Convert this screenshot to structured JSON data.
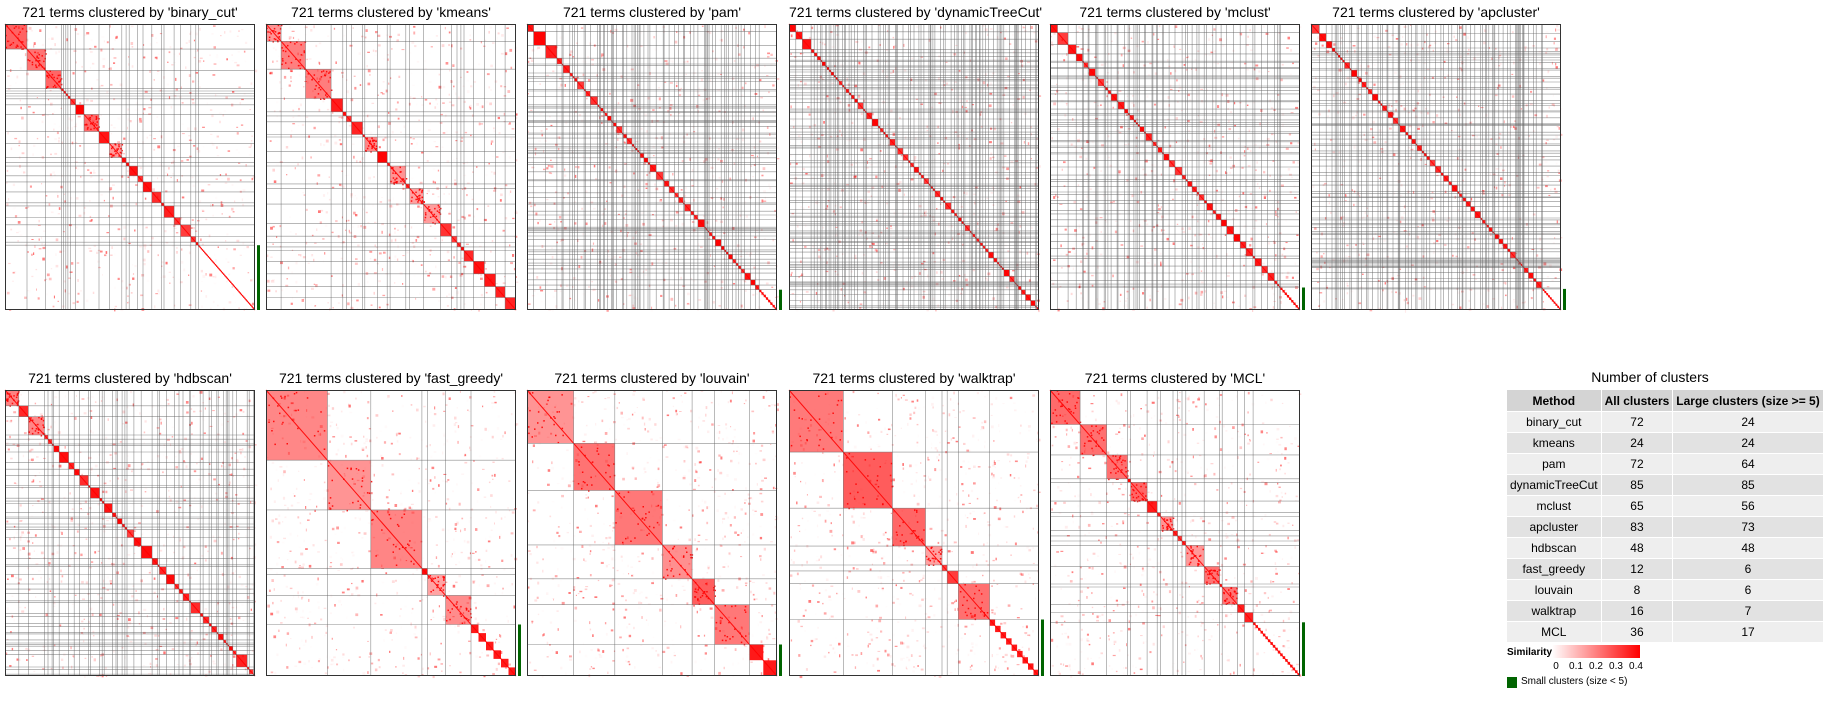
{
  "colors": {
    "low": "#ffffff",
    "high": "#ff0000",
    "small_cluster": "#006400",
    "border": "#555555"
  },
  "panels": [
    {
      "title": "721 terms clustered by 'binary_cut'",
      "method": "binary_cut",
      "n_clusters": 72,
      "n_large": 24
    },
    {
      "title": "721 terms clustered by 'kmeans'",
      "method": "kmeans",
      "n_clusters": 24,
      "n_large": 24
    },
    {
      "title": "721 terms clustered by 'pam'",
      "method": "pam",
      "n_clusters": 72,
      "n_large": 64
    },
    {
      "title": "721 terms clustered by 'dynamicTreeCut'",
      "method": "dynamicTreeCut",
      "n_clusters": 85,
      "n_large": 85
    },
    {
      "title": "721 terms clustered by 'mclust'",
      "method": "mclust",
      "n_clusters": 65,
      "n_large": 56
    },
    {
      "title": "721 terms clustered by 'apcluster'",
      "method": "apcluster",
      "n_clusters": 83,
      "n_large": 73
    },
    {
      "title": "721 terms clustered by 'hdbscan'",
      "method": "hdbscan",
      "n_clusters": 48,
      "n_large": 48
    },
    {
      "title": "721 terms clustered by 'fast_greedy'",
      "method": "fast_greedy",
      "n_clusters": 12,
      "n_large": 6
    },
    {
      "title": "721 terms clustered by 'louvain'",
      "method": "louvain",
      "n_clusters": 8,
      "n_large": 6
    },
    {
      "title": "721 terms clustered by 'walktrap'",
      "method": "walktrap",
      "n_clusters": 16,
      "n_large": 7
    },
    {
      "title": "721 terms clustered by 'MCL'",
      "method": "MCL",
      "n_clusters": 36,
      "n_large": 17
    }
  ],
  "summary_table": {
    "title": "Number of clusters",
    "headers": [
      "Method",
      "All clusters",
      "Large clusters (size >= 5)"
    ],
    "rows": [
      [
        "binary_cut",
        "72",
        "24"
      ],
      [
        "kmeans",
        "24",
        "24"
      ],
      [
        "pam",
        "72",
        "64"
      ],
      [
        "dynamicTreeCut",
        "85",
        "85"
      ],
      [
        "mclust",
        "65",
        "56"
      ],
      [
        "apcluster",
        "83",
        "73"
      ],
      [
        "hdbscan",
        "48",
        "48"
      ],
      [
        "fast_greedy",
        "12",
        "6"
      ],
      [
        "louvain",
        "8",
        "6"
      ],
      [
        "walktrap",
        "16",
        "7"
      ],
      [
        "MCL",
        "36",
        "17"
      ]
    ]
  },
  "legend": {
    "similarity_title": "Similarity",
    "ticks": [
      "0",
      "0.1",
      "0.2",
      "0.3",
      "0.4"
    ],
    "tick_values": [
      0,
      0.1,
      0.2,
      0.3,
      0.4
    ],
    "small_clusters_label": "Small clusters (size < 5)"
  },
  "chart_data": {
    "type": "heatmap",
    "n_terms": 721,
    "value_range": [
      0,
      0.4
    ],
    "series": [
      {
        "method": "binary_cut",
        "all_clusters": 72,
        "large_clusters": 24
      },
      {
        "method": "kmeans",
        "all_clusters": 24,
        "large_clusters": 24
      },
      {
        "method": "pam",
        "all_clusters": 72,
        "large_clusters": 64
      },
      {
        "method": "dynamicTreeCut",
        "all_clusters": 85,
        "large_clusters": 85
      },
      {
        "method": "mclust",
        "all_clusters": 65,
        "large_clusters": 56
      },
      {
        "method": "apcluster",
        "all_clusters": 83,
        "large_clusters": 73
      },
      {
        "method": "hdbscan",
        "all_clusters": 48,
        "large_clusters": 48
      },
      {
        "method": "fast_greedy",
        "all_clusters": 12,
        "large_clusters": 6
      },
      {
        "method": "louvain",
        "all_clusters": 8,
        "large_clusters": 6
      },
      {
        "method": "walktrap",
        "all_clusters": 16,
        "large_clusters": 7
      },
      {
        "method": "MCL",
        "all_clusters": 36,
        "large_clusters": 17
      }
    ]
  }
}
